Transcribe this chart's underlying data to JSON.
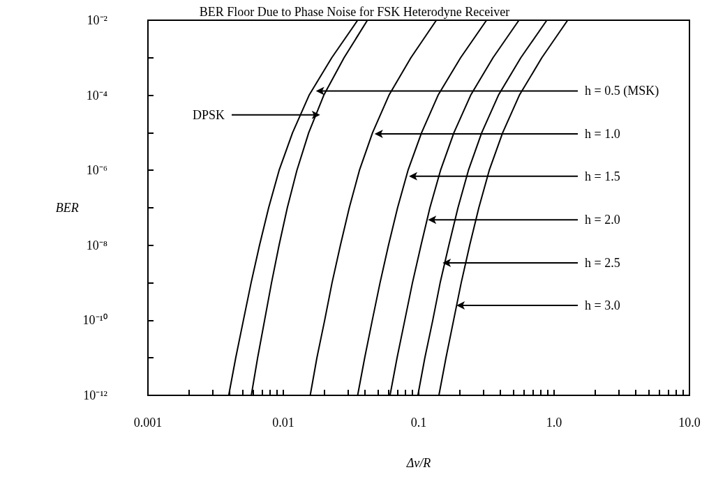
{
  "chart_data": {
    "type": "line",
    "title": "BER Floor Due to Phase Noise for FSK Heterodyne Receiver",
    "xlabel": "Δν/R",
    "ylabel": "BER",
    "log": "xy",
    "marker": "none",
    "line_style": "solid",
    "xlim": [
      0.001,
      10
    ],
    "ylim": [
      1e-12,
      0.01
    ],
    "xticks": [
      0.001,
      {
        "value": 0.002,
        "label": null
      },
      {
        "value": 0.003,
        "label": null
      },
      {
        "value": 0.004,
        "label": null
      },
      {
        "value": 0.005,
        "label": null
      },
      {
        "value": 0.006,
        "label": null
      },
      {
        "value": 0.007,
        "label": null
      },
      {
        "value": 0.008,
        "label": null
      },
      {
        "value": 0.009,
        "label": null
      },
      0.01,
      {
        "value": 0.02,
        "label": null
      },
      {
        "value": 0.03,
        "label": null
      },
      {
        "value": 0.04,
        "label": null
      },
      {
        "value": 0.05,
        "label": null
      },
      {
        "value": 0.06,
        "label": null
      },
      {
        "value": 0.07,
        "label": null
      },
      {
        "value": 0.08,
        "label": null
      },
      {
        "value": 0.09,
        "label": null
      },
      0.1,
      {
        "value": 0.2,
        "label": null
      },
      {
        "value": 0.3,
        "label": null
      },
      {
        "value": 0.4,
        "label": null
      },
      {
        "value": 0.5,
        "label": null
      },
      {
        "value": 0.6,
        "label": null
      },
      {
        "value": 0.7,
        "label": null
      },
      {
        "value": 0.8,
        "label": null
      },
      {
        "value": 0.9,
        "label": null
      },
      {
        "value": 1,
        "label": "1.0"
      },
      {
        "value": 2,
        "label": null
      },
      {
        "value": 3,
        "label": null
      },
      {
        "value": 4,
        "label": null
      },
      {
        "value": 5,
        "label": null
      },
      {
        "value": 6,
        "label": null
      },
      {
        "value": 7,
        "label": null
      },
      {
        "value": 8,
        "label": null
      },
      {
        "value": 9,
        "label": null
      },
      {
        "value": 10,
        "label": "10.0"
      }
    ],
    "yticks": [
      {
        "value": 1e-12,
        "label": "10⁻¹²"
      },
      {
        "value": 1e-11,
        "label": null
      },
      {
        "value": 1e-10,
        "label": "10⁻¹⁰"
      },
      {
        "value": 1e-09,
        "label": null
      },
      {
        "value": 1e-08,
        "label": "10⁻⁸"
      },
      {
        "value": 1e-07,
        "label": null
      },
      {
        "value": 1e-06,
        "label": "10⁻⁶"
      },
      {
        "value": 1e-05,
        "label": null
      },
      {
        "value": 0.0001,
        "label": "10⁻⁴"
      },
      {
        "value": 0.001,
        "label": null
      },
      {
        "value": 0.01,
        "label": "10⁻²"
      }
    ],
    "series": [
      {
        "color": "#000000",
        "x": [
          0.00395,
          0.00445,
          0.00507,
          0.00578,
          0.00667,
          0.00779,
          0.00931,
          0.0117,
          0.0155,
          0.0228,
          0.0354
        ],
        "values": [
          1e-12,
          1e-11,
          1e-10,
          1e-09,
          1e-08,
          1e-07,
          1e-06,
          1e-05,
          0.0001,
          0.001,
          0.01
        ]
      },
      {
        "color": "#000000",
        "x": [
          0.0058,
          0.00646,
          0.00727,
          0.00818,
          0.0093,
          0.0107,
          0.0126,
          0.0154,
          0.0199,
          0.0281,
          0.0418
        ],
        "values": [
          1e-12,
          1e-11,
          1e-10,
          1e-09,
          1e-08,
          1e-07,
          1e-06,
          1e-05,
          0.0001,
          0.001,
          0.01
        ]
      },
      {
        "color": "#000000",
        "x": [
          0.0158,
          0.0177,
          0.0202,
          0.0229,
          0.0264,
          0.0307,
          0.0365,
          0.0456,
          0.0603,
          0.0876,
          0.135
        ],
        "values": [
          1e-12,
          1e-11,
          1e-10,
          1e-09,
          1e-08,
          1e-07,
          1e-06,
          1e-05,
          0.0001,
          0.001,
          0.01
        ]
      },
      {
        "color": "#000000",
        "x": [
          0.0354,
          0.0399,
          0.0454,
          0.0518,
          0.0598,
          0.0698,
          0.0834,
          0.105,
          0.139,
          0.204,
          0.317
        ],
        "values": [
          1e-12,
          1e-11,
          1e-10,
          1e-09,
          1e-08,
          1e-07,
          1e-06,
          1e-05,
          0.0001,
          0.001,
          0.01
        ]
      },
      {
        "color": "#000000",
        "x": [
          0.0614,
          0.0692,
          0.0789,
          0.0899,
          0.104,
          0.121,
          0.145,
          0.182,
          0.242,
          0.354,
          0.55
        ],
        "values": [
          1e-12,
          1e-11,
          1e-10,
          1e-09,
          1e-08,
          1e-07,
          1e-06,
          1e-05,
          0.0001,
          0.001,
          0.01
        ]
      },
      {
        "color": "#000000",
        "x": [
          0.0986,
          0.111,
          0.127,
          0.144,
          0.167,
          0.195,
          0.233,
          0.292,
          0.388,
          0.568,
          0.884
        ],
        "values": [
          1e-12,
          1e-11,
          1e-10,
          1e-09,
          1e-08,
          1e-07,
          1e-06,
          1e-05,
          0.0001,
          0.001,
          0.01
        ]
      },
      {
        "color": "#000000",
        "x": [
          0.141,
          0.159,
          0.181,
          0.206,
          0.238,
          0.278,
          0.332,
          0.417,
          0.554,
          0.812,
          1.26
        ],
        "values": [
          1e-12,
          1e-11,
          1e-10,
          1e-09,
          1e-08,
          1e-07,
          1e-06,
          1e-05,
          0.0001,
          0.001,
          0.01
        ]
      }
    ],
    "annotations": [
      {
        "text": "h = 0.5 (MSK)",
        "x": 0.0174,
        "y": 0.00013
      },
      {
        "text": "DPSK",
        "x": 0.0187,
        "y": 3e-05
      },
      {
        "text": "h = 1.0",
        "x": 0.0472,
        "y": 9.3e-06
      },
      {
        "text": "h = 1.5",
        "x": 0.0847,
        "y": 6.9e-07
      },
      {
        "text": "h = 2.0",
        "x": 0.117,
        "y": 4.8e-08
      },
      {
        "text": "h = 2.5",
        "x": 0.15,
        "y": 3.4e-09
      },
      {
        "text": "h = 3.0",
        "x": 0.19,
        "y": 2.5e-10
      }
    ]
  }
}
